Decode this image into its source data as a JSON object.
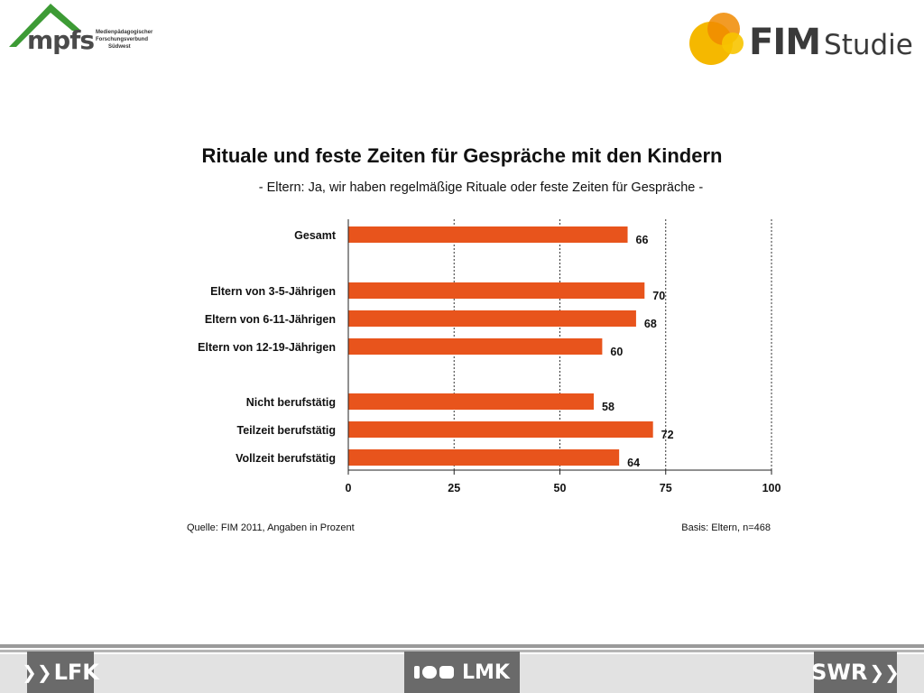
{
  "logos": {
    "mpfs": {
      "word": "mpfs",
      "lines": [
        "Medienpädagogischer",
        "Forschungsverbund",
        "Südwest"
      ]
    },
    "fim": {
      "word": "FIM",
      "studie": "Studie"
    },
    "footer": {
      "lfk": "LFK",
      "lmk": "LMK",
      "swr": "SWR"
    },
    "colors": {
      "mpfs_green": "#3d9b35",
      "fim_yellow": "#f5b800",
      "fim_orange": "#f08a00"
    }
  },
  "chart_data": {
    "type": "bar",
    "orientation": "horizontal",
    "title": "Rituale und feste Zeiten für Gespräche mit den Kindern",
    "subtitle": "- Eltern: Ja, wir haben regelmäßige Rituale oder feste Zeiten für Gespräche -",
    "categories": [
      "Gesamt",
      "Eltern von 3-5-Jährigen",
      "Eltern von 6-11-Jährigen",
      "Eltern von 12-19-Jährigen",
      "Nicht berufstätig",
      "Teilzeit berufstätig",
      "Vollzeit berufstätig"
    ],
    "values": [
      66,
      70,
      68,
      60,
      58,
      72,
      64
    ],
    "groups": [
      [
        0
      ],
      [
        1,
        2,
        3
      ],
      [
        4,
        5,
        6
      ]
    ],
    "xlim": [
      0,
      100
    ],
    "xticks": [
      0,
      25,
      50,
      75,
      100
    ],
    "grid": "vertical dotted",
    "bar_color": "#e8541c",
    "source": "Quelle: FIM 2011,  Angaben in Prozent",
    "basis": "Basis: Eltern, n=468"
  }
}
